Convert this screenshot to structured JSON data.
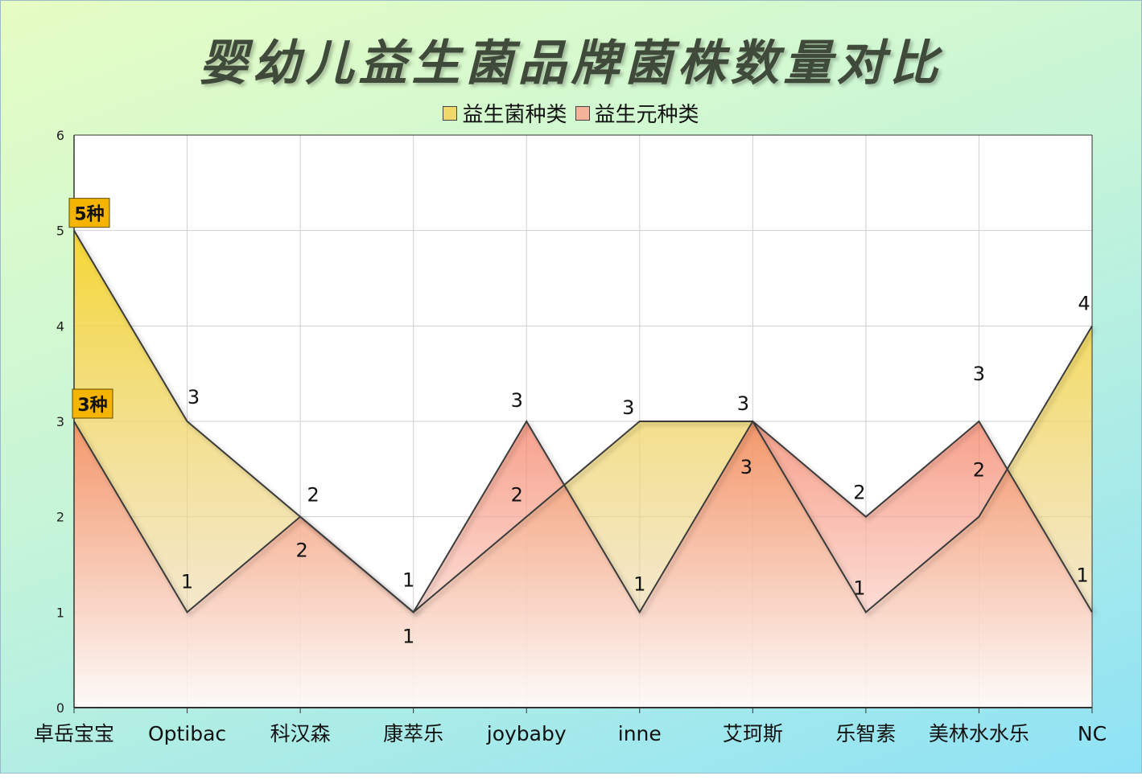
{
  "title": "婴幼儿益生菌品牌菌株数量对比",
  "legend": {
    "items": [
      {
        "label": "益生菌种类",
        "color": "#f1d86a"
      },
      {
        "label": "益生元种类",
        "color": "#f5b39a"
      }
    ]
  },
  "chart_data": {
    "type": "area",
    "categories": [
      "卓岳宝宝",
      "Optibac",
      "科汉森",
      "康萃乐",
      "joybaby",
      "inne",
      "艾珂斯",
      "乐智素",
      "美林水水乐",
      "NC"
    ],
    "series": [
      {
        "name": "益生菌种类",
        "values": [
          5,
          3,
          2,
          1,
          2,
          3,
          3,
          1,
          2,
          4
        ],
        "color": "#f1d86a"
      },
      {
        "name": "益生元种类",
        "values": [
          3,
          1,
          2,
          1,
          3,
          1,
          3,
          2,
          3,
          1
        ],
        "color": "#f5b39a"
      }
    ],
    "yticks": [
      0,
      1,
      2,
      3,
      4,
      5,
      6
    ],
    "ylim": [
      0,
      6
    ],
    "grid": true,
    "legend_position": "top",
    "callouts": [
      "5种",
      "3种"
    ],
    "callout_color": "#f5b400",
    "xlabel": "",
    "ylabel": ""
  }
}
